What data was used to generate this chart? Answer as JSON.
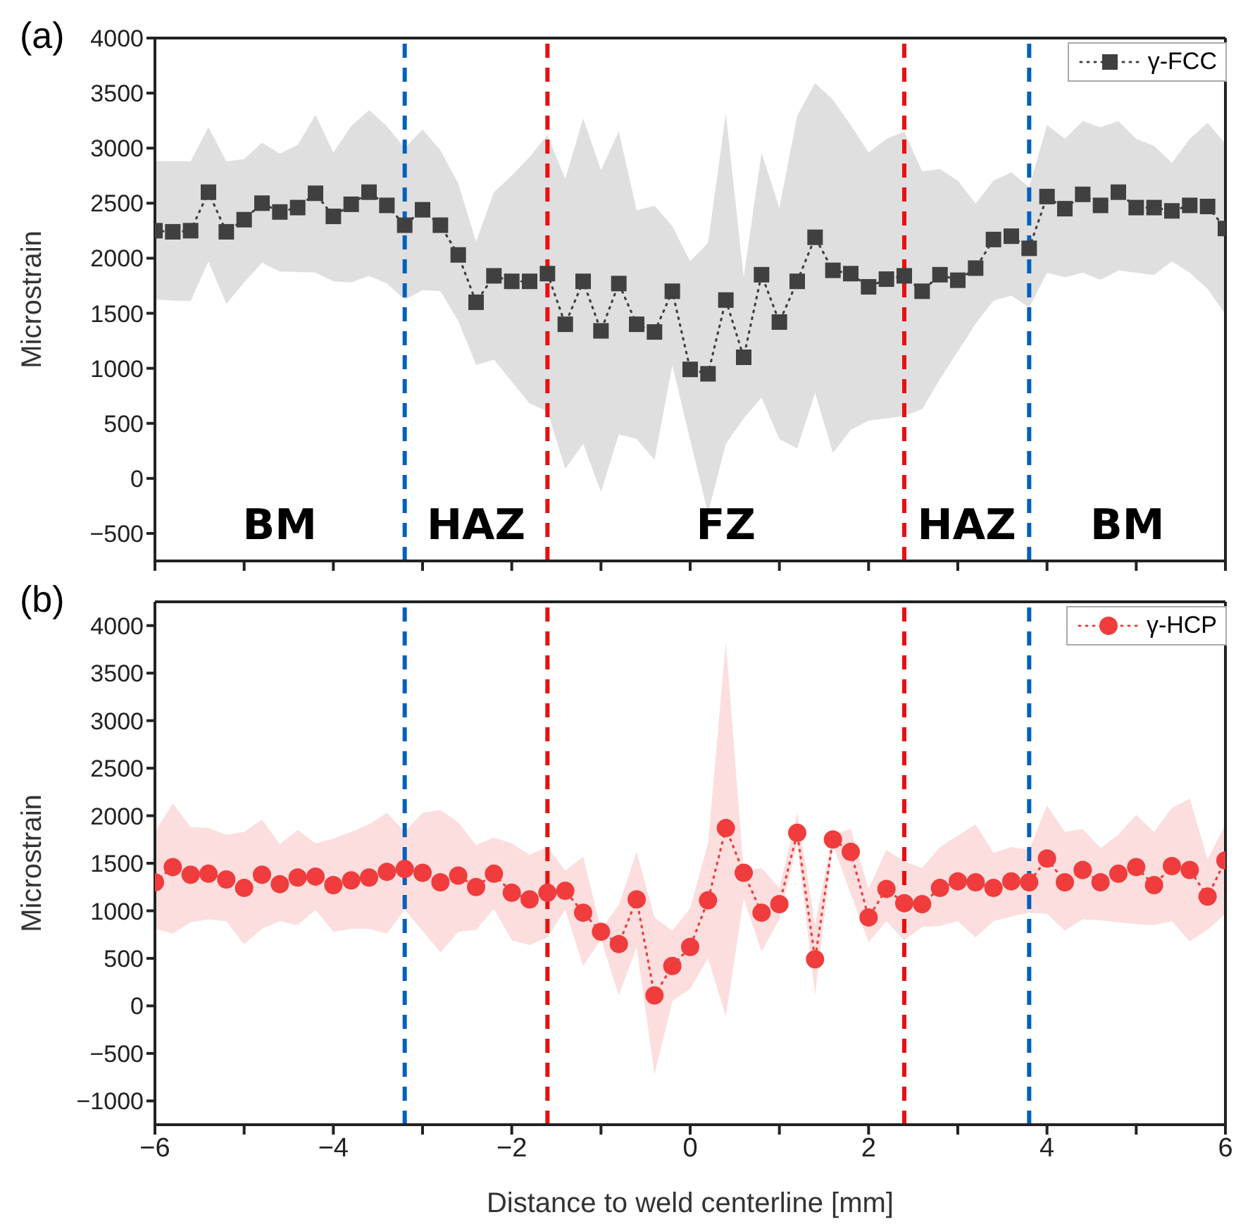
{
  "chart_data": [
    {
      "type": "line",
      "title": "(a)",
      "ylabel": "Microstrain",
      "tick_labels": "y",
      "legend": "top right",
      "marker": "square",
      "line_style": "dotted",
      "grid": false,
      "x": [
        -6,
        -5.8,
        -5.6,
        -5.4,
        -5.2,
        -5,
        -4.8,
        -4.6,
        -4.4,
        -4.2,
        -4,
        -3.8,
        -3.6,
        -3.4,
        -3.2,
        -3,
        -2.8,
        -2.6,
        -2.4,
        -2.2,
        -2,
        -1.8,
        -1.6,
        -1.4,
        -1.2,
        -1,
        -0.8,
        -0.6,
        -0.4,
        -0.2,
        0,
        0.2,
        0.4,
        0.6,
        0.8,
        1,
        1.2,
        1.4,
        1.6,
        1.8,
        2,
        2.2,
        2.4,
        2.6,
        2.8,
        3,
        3.2,
        3.4,
        3.6,
        3.8,
        4,
        4.2,
        4.4,
        4.6,
        4.8,
        5,
        5.2,
        5.4,
        5.6,
        5.8,
        6
      ],
      "xlim": [
        -6,
        6
      ],
      "xticks": [
        -6,
        {
          "value": -5,
          "label": null
        },
        -4,
        {
          "value": -3,
          "label": null
        },
        -2,
        {
          "value": -1,
          "label": null
        },
        0,
        {
          "value": 1,
          "label": null
        },
        2,
        {
          "value": 3,
          "label": null
        },
        4,
        {
          "value": 5,
          "label": null
        },
        6
      ],
      "ylim": [
        -750,
        4000
      ],
      "yticks": [
        -500,
        0,
        500,
        1000,
        1500,
        2000,
        2500,
        3000,
        3500,
        4000
      ],
      "series": [
        {
          "name": "γ-FCC",
          "color": "#404040",
          "values": [
            2250,
            2240,
            2250,
            2600,
            2240,
            2350,
            2500,
            2420,
            2460,
            2590,
            2380,
            2490,
            2600,
            2480,
            2300,
            2440,
            2300,
            2030,
            1600,
            1840,
            1790,
            1790,
            1860,
            1400,
            1790,
            1340,
            1770,
            1400,
            1330,
            1700,
            990,
            950,
            1620,
            1100,
            1850,
            1420,
            1790,
            2190,
            1890,
            1860,
            1740,
            1810,
            1840,
            1700,
            1850,
            1800,
            1910,
            2170,
            2200,
            2090,
            2560,
            2450,
            2580,
            2480,
            2600,
            2460,
            2460,
            2430,
            2480,
            2470,
            2270
          ],
          "lower": [
            1625,
            1615,
            1610,
            1970,
            1585,
            1780,
            1960,
            1880,
            1875,
            1870,
            1790,
            1780,
            1840,
            1770,
            1625,
            1710,
            1700,
            1430,
            1030,
            1080,
            880,
            680,
            610,
            85,
            315,
            -125,
            400,
            357,
            168,
            1028,
            350,
            -315,
            315,
            545,
            735,
            357,
            273,
            776,
            231,
            441,
            525,
            545,
            567,
            630,
            902,
            1154,
            1406,
            1616,
            1658,
            1553,
            1868,
            1826,
            1868,
            1805,
            1889,
            1868,
            1847,
            1973,
            1868,
            1721,
            1490
          ],
          "upper": [
            2883,
            2880,
            2880,
            3190,
            2880,
            2900,
            3050,
            2950,
            3030,
            3300,
            2960,
            3200,
            3345,
            3200,
            3000,
            3170,
            2980,
            2680,
            2150,
            2600,
            2750,
            2920,
            3120,
            2720,
            3270,
            2800,
            3150,
            2435,
            2476,
            2290,
            1970,
            2140,
            3315,
            1825,
            2960,
            2455,
            3295,
            3590,
            3440,
            3210,
            2960,
            3085,
            3150,
            2790,
            2810,
            2705,
            2495,
            2705,
            2780,
            2645,
            3210,
            3085,
            3245,
            3190,
            3245,
            3085,
            3020,
            2865,
            3085,
            3230,
            3040
          ]
        }
      ],
      "ref_lines": [
        {
          "axis": "x",
          "value": -3.2,
          "color": "#0060c0",
          "line_style": "dashed"
        },
        {
          "axis": "x",
          "value": -1.6,
          "color": "#e81010",
          "line_style": "dashed"
        },
        {
          "axis": "x",
          "value": 2.4,
          "color": "#e81010",
          "line_style": "dashed"
        },
        {
          "axis": "x",
          "value": 3.8,
          "color": "#0060c0",
          "line_style": "dashed"
        }
      ],
      "annotations": [
        "BM",
        "HAZ",
        "FZ",
        "HAZ",
        "BM"
      ]
    },
    {
      "type": "line",
      "title": "(b)",
      "xlabel": "Distance to weld centerline [mm]",
      "ylabel": "Microstrain",
      "legend": "top right",
      "marker": "circle",
      "line_style": "dotted",
      "grid": false,
      "x": [
        -6,
        -5.8,
        -5.6,
        -5.4,
        -5.2,
        -5,
        -4.8,
        -4.6,
        -4.4,
        -4.2,
        -4,
        -3.8,
        -3.6,
        -3.4,
        -3.2,
        -3,
        -2.8,
        -2.6,
        -2.4,
        -2.2,
        -2,
        -1.8,
        -1.6,
        -1.4,
        -1.2,
        -1,
        -0.8,
        -0.6,
        -0.4,
        -0.2,
        0,
        0.2,
        0.4,
        0.6,
        0.8,
        1,
        1.2,
        1.4,
        1.6,
        1.8,
        2,
        2.2,
        2.4,
        2.6,
        2.8,
        3,
        3.2,
        3.4,
        3.6,
        3.8,
        4,
        4.2,
        4.4,
        4.6,
        4.8,
        5,
        5.2,
        5.4,
        5.6,
        5.8,
        6
      ],
      "xlim": [
        -6,
        6
      ],
      "xticks": [
        -6,
        {
          "value": -5,
          "label": null
        },
        -4,
        {
          "value": -3,
          "label": null
        },
        -2,
        {
          "value": -1,
          "label": null
        },
        0,
        {
          "value": 1,
          "label": null
        },
        2,
        {
          "value": 3,
          "label": null
        },
        4,
        {
          "value": 5,
          "label": null
        },
        6
      ],
      "ylim": [
        -1250,
        4250
      ],
      "yticks": [
        -1000,
        -500,
        0,
        500,
        1000,
        1500,
        2000,
        2500,
        3000,
        3500,
        4000
      ],
      "series": [
        {
          "name": "γ-HCP",
          "color": "#f03c3c",
          "values": [
            1300,
            1460,
            1380,
            1390,
            1330,
            1240,
            1380,
            1280,
            1350,
            1360,
            1270,
            1320,
            1350,
            1410,
            1440,
            1400,
            1300,
            1370,
            1250,
            1390,
            1190,
            1120,
            1190,
            1210,
            980,
            780,
            650,
            1120,
            110,
            420,
            620,
            1110,
            1870,
            1400,
            980,
            1070,
            1820,
            490,
            1750,
            1620,
            930,
            1230,
            1080,
            1070,
            1240,
            1310,
            1300,
            1240,
            1310,
            1300,
            1550,
            1300,
            1430,
            1300,
            1390,
            1460,
            1270,
            1470,
            1430,
            1150,
            1530
          ],
          "lower": [
            810,
            760,
            880,
            910,
            890,
            650,
            810,
            890,
            850,
            1010,
            780,
            810,
            810,
            760,
            1010,
            790,
            560,
            780,
            800,
            1020,
            690,
            640,
            720,
            1010,
            420,
            700,
            110,
            620,
            -720,
            50,
            180,
            500,
            -110,
            1130,
            570,
            910,
            1710,
            110,
            1690,
            1180,
            670,
            890,
            690,
            830,
            840,
            890,
            720,
            890,
            940,
            980,
            970,
            790,
            910,
            900,
            880,
            860,
            850,
            890,
            680,
            800,
            970
          ],
          "upper": [
            1830,
            2130,
            1880,
            1870,
            1800,
            1830,
            1960,
            1700,
            1850,
            1710,
            1760,
            1830,
            1910,
            2030,
            1830,
            2030,
            2060,
            1930,
            1690,
            1770,
            1710,
            1590,
            1670,
            1420,
            1570,
            800,
            1060,
            1620,
            930,
            790,
            1030,
            1710,
            3830,
            1420,
            1450,
            1240,
            2030,
            860,
            1810,
            1860,
            1230,
            1640,
            1520,
            1450,
            1670,
            1790,
            1910,
            1610,
            1670,
            1640,
            2110,
            1830,
            1860,
            1660,
            1800,
            2010,
            1830,
            2080,
            2180,
            1540,
            1910
          ]
        }
      ],
      "ref_lines": [
        {
          "axis": "x",
          "value": -3.2,
          "color": "#0060c0",
          "line_style": "dashed"
        },
        {
          "axis": "x",
          "value": -1.6,
          "color": "#e81010",
          "line_style": "dashed"
        },
        {
          "axis": "x",
          "value": 2.4,
          "color": "#e81010",
          "line_style": "dashed"
        },
        {
          "axis": "x",
          "value": 3.8,
          "color": "#0060c0",
          "line_style": "dashed"
        }
      ]
    }
  ]
}
